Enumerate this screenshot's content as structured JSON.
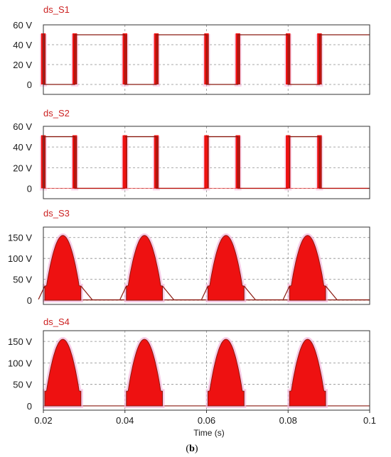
{
  "figure_label": "b",
  "colors": {
    "series": "#ee1111",
    "dark": "#8a1a10",
    "halo": "#f4b6dc",
    "grid": "#8c8c8c",
    "title": "#cc2222"
  },
  "chart_data": [
    {
      "type": "line",
      "title": "ds_S1",
      "series": [
        {
          "shape": "square",
          "phase": "S1",
          "values_desc": "",
          "amplitude": 50
        }
      ],
      "xlim": [
        0.02,
        0.1
      ],
      "ylim": [
        -10,
        60
      ],
      "yticks": [
        "0",
        "20 V",
        "40 V",
        "60 V"
      ],
      "ytick_values": [
        0,
        20,
        40,
        60
      ]
    },
    {
      "type": "line",
      "title": "ds_S2",
      "series": [
        {
          "shape": "square",
          "phase": "S2",
          "amplitude": 50
        }
      ],
      "xlim": [
        0.02,
        0.1
      ],
      "ylim": [
        -10,
        60
      ],
      "yticks": [
        "0",
        "20 V",
        "40 V",
        "60 V"
      ],
      "ytick_values": [
        0,
        20,
        40,
        60
      ]
    },
    {
      "type": "area",
      "title": "ds_S3",
      "series": [
        {
          "shape": "half-sine",
          "phase": "S3",
          "amplitude": 155
        }
      ],
      "xlim": [
        0.02,
        0.1
      ],
      "ylim": [
        -10,
        175
      ],
      "yticks": [
        "0",
        "50 V",
        "100 V",
        "150 V"
      ],
      "ytick_values": [
        0,
        50,
        100,
        150
      ]
    },
    {
      "type": "area",
      "title": "ds_S4",
      "series": [
        {
          "shape": "half-sine",
          "phase": "S4",
          "amplitude": 155
        }
      ],
      "xlim": [
        0.02,
        0.1
      ],
      "ylim": [
        -10,
        175
      ],
      "yticks": [
        "0",
        "50 V",
        "100 V",
        "150 V"
      ],
      "ytick_values": [
        0,
        50,
        100,
        150
      ],
      "xticks": [
        "0.02",
        "0.04",
        "0.06",
        "0.08",
        "0.1"
      ],
      "xtick_values": [
        0.02,
        0.04,
        0.06,
        0.08,
        0.1
      ],
      "xlabel": "Time (s)"
    }
  ]
}
